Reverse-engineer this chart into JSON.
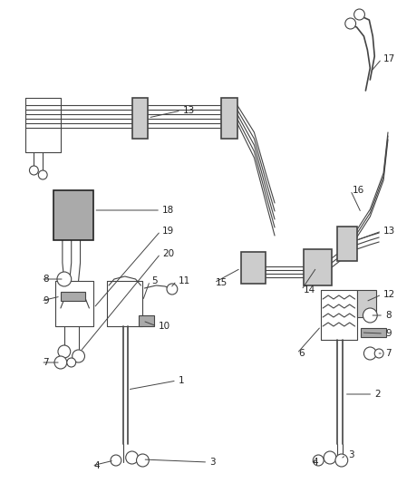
{
  "bg_color": "#ffffff",
  "line_color": "#444444",
  "dark_color": "#222222",
  "gray_color": "#888888",
  "light_gray": "#cccccc",
  "fig_width": 4.38,
  "fig_height": 5.33,
  "dpi": 100
}
